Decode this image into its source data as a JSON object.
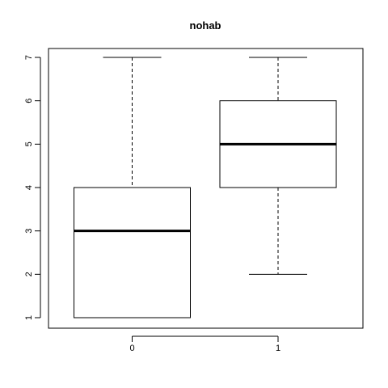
{
  "chart_data": {
    "type": "boxplot",
    "title": "nohab",
    "xlabel": "",
    "ylabel": "",
    "categories": [
      "0",
      "1"
    ],
    "ylim": [
      1,
      7
    ],
    "y_ticks": [
      1,
      2,
      3,
      4,
      5,
      6,
      7
    ],
    "grid": false,
    "boxes": [
      {
        "category": "0",
        "whisker_low": 1,
        "q1": 1,
        "median": 3,
        "q3": 4,
        "whisker_high": 7
      },
      {
        "category": "1",
        "whisker_low": 2,
        "q1": 4,
        "median": 5,
        "q3": 6,
        "whisker_high": 7
      }
    ]
  }
}
